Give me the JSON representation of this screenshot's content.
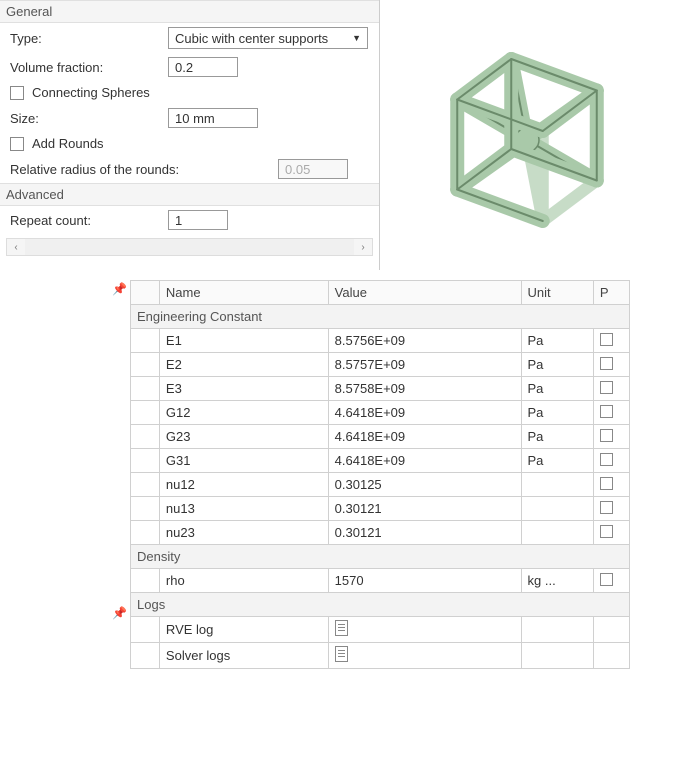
{
  "panel": {
    "general": {
      "title": "General",
      "type_label": "Type:",
      "type_value": "Cubic with center supports",
      "vf_label": "Volume fraction:",
      "vf_value": "0.2",
      "spheres_label": "Connecting Spheres",
      "size_label": "Size:",
      "size_value": "10 mm",
      "rounds_label": "Add Rounds",
      "radius_label": "Relative radius of the rounds:",
      "radius_value": "0.05"
    },
    "advanced": {
      "title": "Advanced",
      "repeat_label": "Repeat count:",
      "repeat_value": "1"
    }
  },
  "preview": {
    "face_color": "#a9c9a9",
    "edge_color": "#6b8b6b",
    "back_edge": "#c7dcc7"
  },
  "table": {
    "columns": {
      "name": "Name",
      "value": "Value",
      "unit": "Unit",
      "p": "P"
    },
    "group_eng": "Engineering Constant",
    "rows_eng": [
      {
        "name": "E1",
        "value": "8.5756E+09",
        "unit": "Pa"
      },
      {
        "name": "E2",
        "value": "8.5757E+09",
        "unit": "Pa"
      },
      {
        "name": "E3",
        "value": "8.5758E+09",
        "unit": "Pa"
      },
      {
        "name": "G12",
        "value": "4.6418E+09",
        "unit": "Pa"
      },
      {
        "name": "G23",
        "value": "4.6418E+09",
        "unit": "Pa"
      },
      {
        "name": "G31",
        "value": "4.6418E+09",
        "unit": "Pa"
      },
      {
        "name": "nu12",
        "value": "0.30125",
        "unit": ""
      },
      {
        "name": "nu13",
        "value": "0.30121",
        "unit": ""
      },
      {
        "name": "nu23",
        "value": "0.30121",
        "unit": ""
      }
    ],
    "group_density": "Density",
    "rows_density": [
      {
        "name": "rho",
        "value": "1570",
        "unit": "kg ..."
      }
    ],
    "group_logs": "Logs",
    "rows_logs": [
      {
        "name": "RVE log"
      },
      {
        "name": "Solver logs"
      }
    ]
  }
}
